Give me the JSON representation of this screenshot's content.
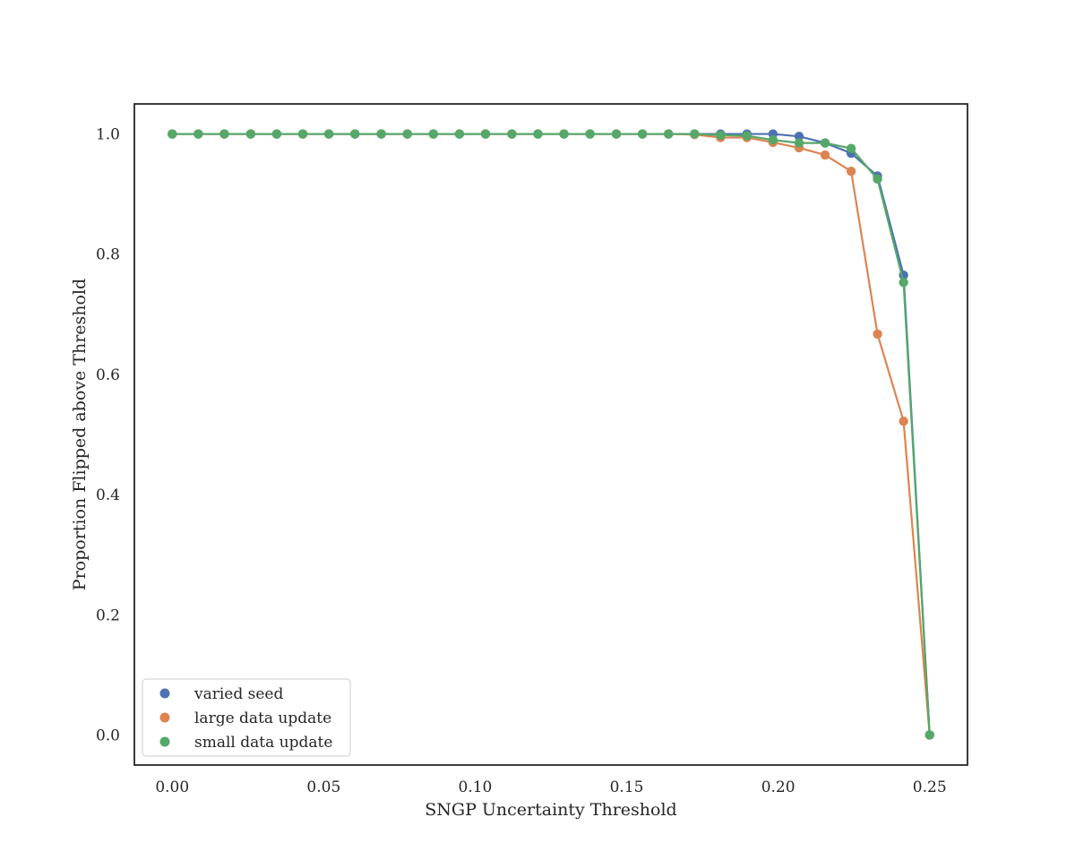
{
  "chart_data": {
    "type": "line",
    "xlabel": "SNGP Uncertainty Threshold",
    "ylabel": "Proportion Flipped above Threshold",
    "xlim": [
      -0.0125,
      0.2625
    ],
    "ylim": [
      -0.05,
      1.05
    ],
    "xticks": [
      0.0,
      0.05,
      0.1,
      0.15,
      0.2,
      0.25
    ],
    "xtick_labels": [
      "0.00",
      "0.05",
      "0.10",
      "0.15",
      "0.20",
      "0.25"
    ],
    "yticks": [
      0.0,
      0.2,
      0.4,
      0.6,
      0.8,
      1.0
    ],
    "ytick_labels": [
      "0.0",
      "0.2",
      "0.4",
      "0.6",
      "0.8",
      "1.0"
    ],
    "grid": false,
    "legend_position": "lower-left",
    "x": [
      0.0,
      0.0086,
      0.0172,
      0.0259,
      0.0345,
      0.0431,
      0.0517,
      0.0603,
      0.069,
      0.0776,
      0.0862,
      0.0948,
      0.1034,
      0.1121,
      0.1207,
      0.1293,
      0.1379,
      0.1466,
      0.1552,
      0.1638,
      0.1724,
      0.181,
      0.1897,
      0.1983,
      0.2069,
      0.2155,
      0.2241,
      0.2328,
      0.2414,
      0.25
    ],
    "series": [
      {
        "name": "varied seed",
        "color": "#4c72b0",
        "values": [
          1,
          1,
          1,
          1,
          1,
          1,
          1,
          1,
          1,
          1,
          1,
          1,
          1,
          1,
          1,
          1,
          1,
          1,
          1,
          1,
          1,
          1,
          1,
          1,
          0.996,
          0.985,
          0.968,
          0.93,
          0.765,
          0
        ]
      },
      {
        "name": "large data update",
        "color": "#dd8452",
        "values": [
          1,
          1,
          1,
          1,
          1,
          1,
          1,
          1,
          1,
          1,
          1,
          1,
          1,
          1,
          1,
          1,
          1,
          1,
          1,
          1,
          0.999,
          0.994,
          0.994,
          0.986,
          0.977,
          0.965,
          0.938,
          0.667,
          0.522,
          0
        ]
      },
      {
        "name": "small data update",
        "color": "#55a868",
        "values": [
          1,
          1,
          1,
          1,
          1,
          1,
          1,
          1,
          1,
          1,
          1,
          1,
          1,
          1,
          1,
          1,
          1,
          1,
          1,
          1,
          1,
          0.998,
          0.997,
          0.99,
          0.985,
          0.985,
          0.976,
          0.925,
          0.753,
          0
        ]
      }
    ]
  }
}
